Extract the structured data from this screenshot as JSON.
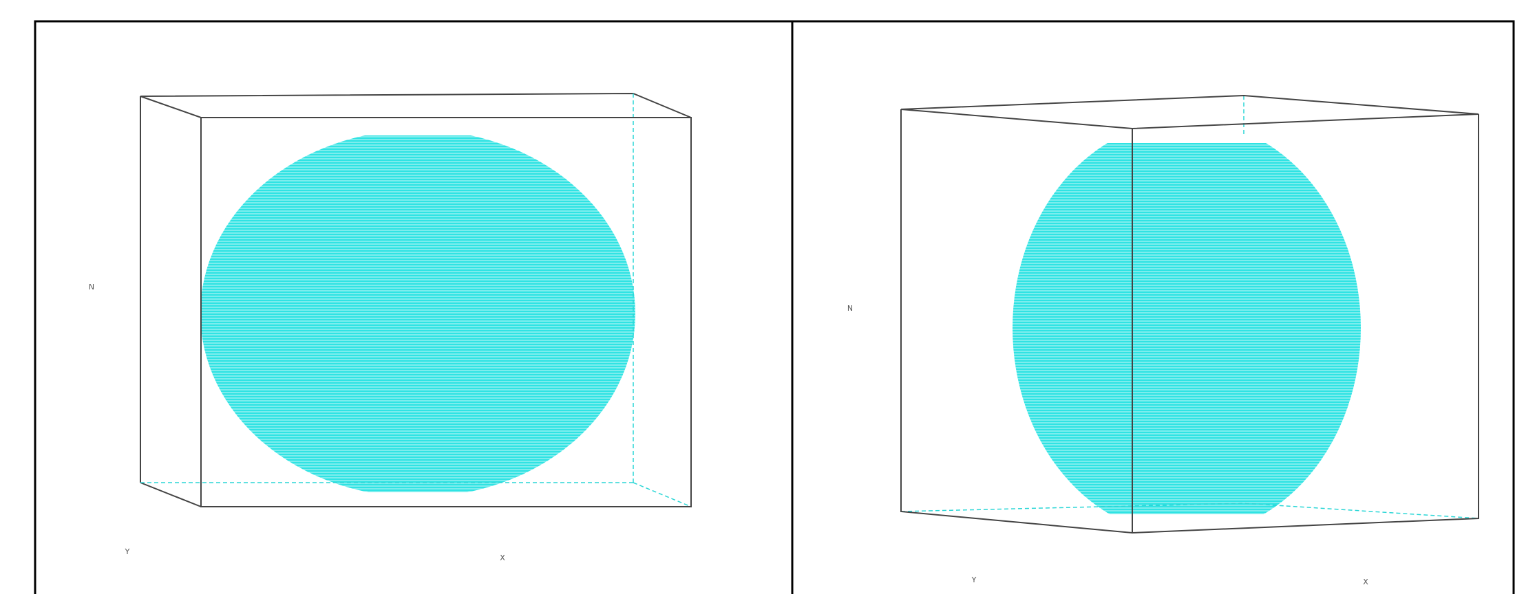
{
  "panels": [
    {
      "axis_labels": {
        "z": "N",
        "y": "Y",
        "x": "X"
      }
    },
    {
      "axis_labels": {
        "z": "N",
        "y": "Y",
        "x": "X"
      }
    }
  ]
}
